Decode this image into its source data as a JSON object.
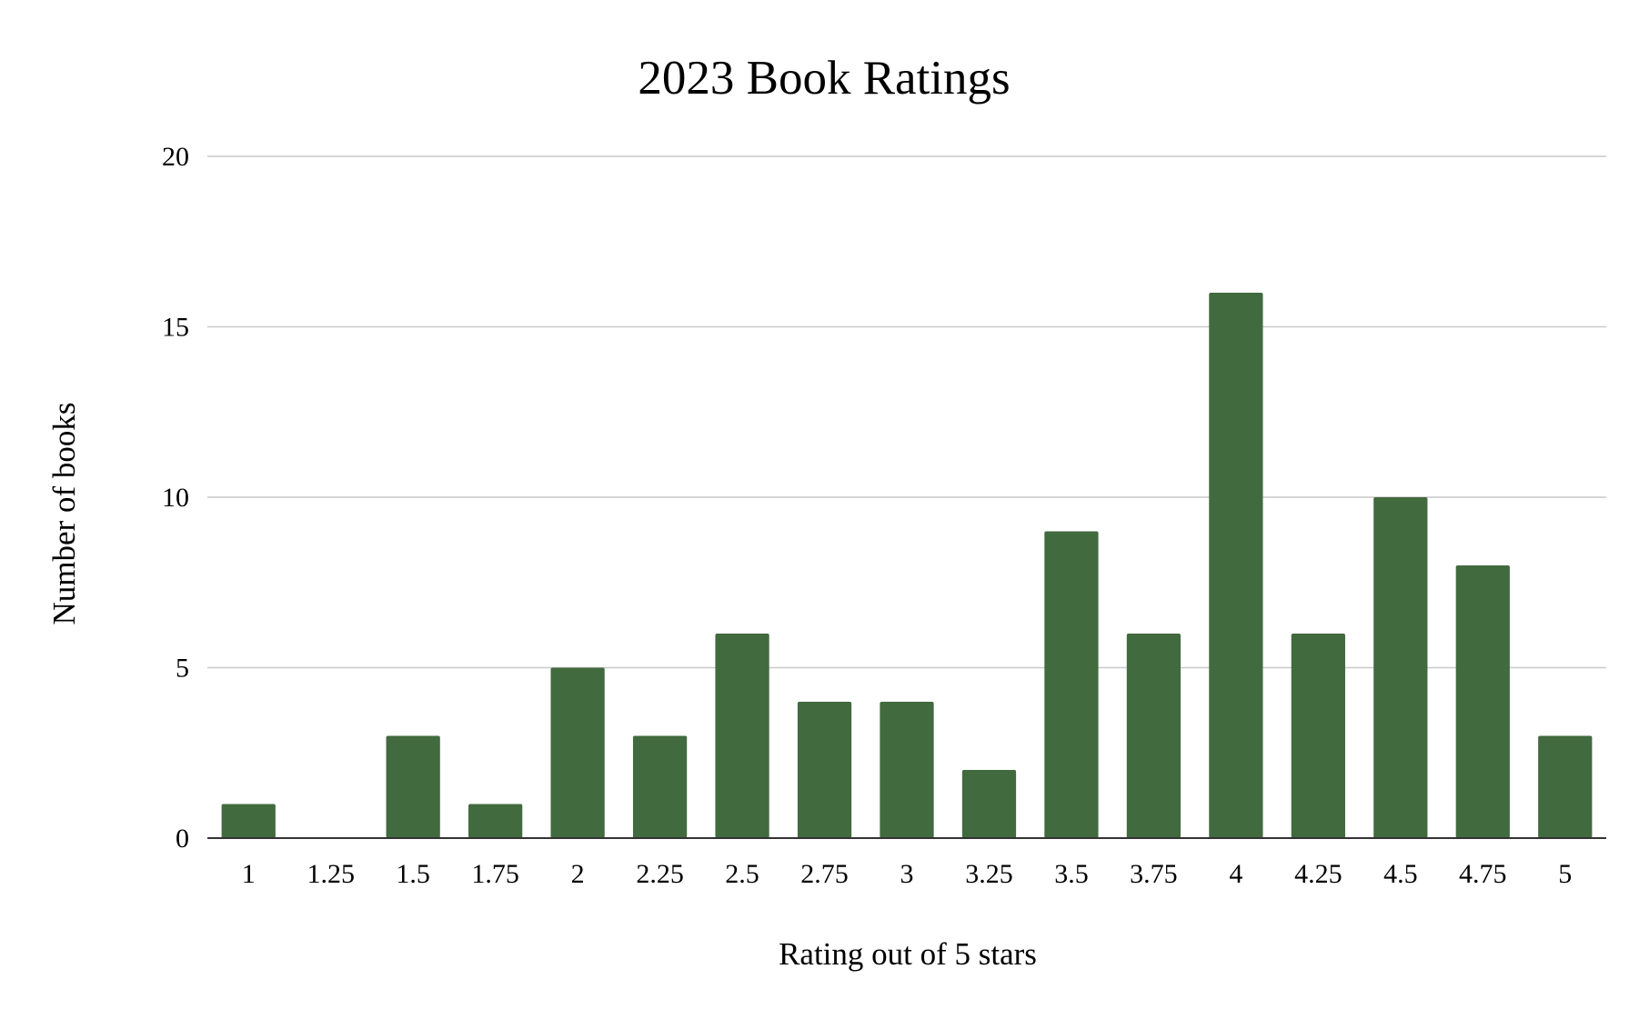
{
  "chart_data": {
    "type": "bar",
    "title": "2023 Book Ratings",
    "xlabel": "Rating out of 5 stars",
    "ylabel": "Number of books",
    "categories": [
      "1",
      "1.25",
      "1.5",
      "1.75",
      "2",
      "2.25",
      "2.5",
      "2.75",
      "3",
      "3.25",
      "3.5",
      "3.75",
      "4",
      "4.25",
      "4.5",
      "4.75",
      "5"
    ],
    "values": [
      1,
      0,
      3,
      1,
      5,
      3,
      6,
      4,
      4,
      2,
      9,
      6,
      16,
      6,
      10,
      8,
      3
    ],
    "ylim": [
      0,
      20
    ],
    "yticks": [
      "0",
      "5",
      "10",
      "15",
      "20"
    ],
    "grid": true,
    "bar_color": "#426a3f"
  }
}
